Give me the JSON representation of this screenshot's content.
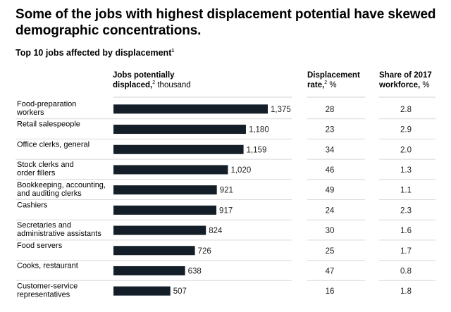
{
  "chart_data": {
    "type": "bar",
    "orientation": "horizontal",
    "title": "Some of the jobs with highest displacement potential have skewed demographic concentrations.",
    "subtitle": "Top 10 jobs affected by displacement",
    "subtitle_note": "1",
    "xlabel": "",
    "ylabel": "",
    "xlim": [
      0,
      1400
    ],
    "grid": false,
    "legend": "none",
    "bar_color": "#141e28",
    "columns": {
      "bars": {
        "title": "Jobs potentially",
        "title_line2": "displaced,",
        "note": "2",
        "unit": "thousand"
      },
      "rate": {
        "title": "Displacement",
        "title_line2": "rate,",
        "note": "2",
        "unit": "%"
      },
      "share": {
        "title": "Share of 2017",
        "title_line2": "workforce,",
        "unit": "%"
      }
    },
    "categories": [
      [
        "Food-preparation",
        "workers"
      ],
      [
        "Retail salespeople"
      ],
      [
        "Office clerks, general"
      ],
      [
        "Stock clerks and",
        "order fillers"
      ],
      [
        "Bookkeeping, accounting,",
        "and auditing clerks"
      ],
      [
        "Cashiers"
      ],
      [
        "Secretaries and",
        "administrative assistants"
      ],
      [
        "Food servers"
      ],
      [
        "Cooks, restaurant"
      ],
      [
        "Customer-service",
        "representatives"
      ]
    ],
    "values": [
      1375,
      1180,
      1159,
      1020,
      921,
      917,
      824,
      726,
      638,
      507
    ],
    "value_labels": [
      "1,375",
      "1,180",
      "1,159",
      "1,020",
      "921",
      "917",
      "824",
      "726",
      "638",
      "507"
    ],
    "displacement_rate": [
      "28",
      "23",
      "34",
      "46",
      "49",
      "24",
      "30",
      "25",
      "47",
      "16"
    ],
    "share_of_workforce": [
      "2.8",
      "2.9",
      "2.0",
      "1.3",
      "1.1",
      "2.3",
      "1.6",
      "1.7",
      "0.8",
      "1.8"
    ]
  }
}
